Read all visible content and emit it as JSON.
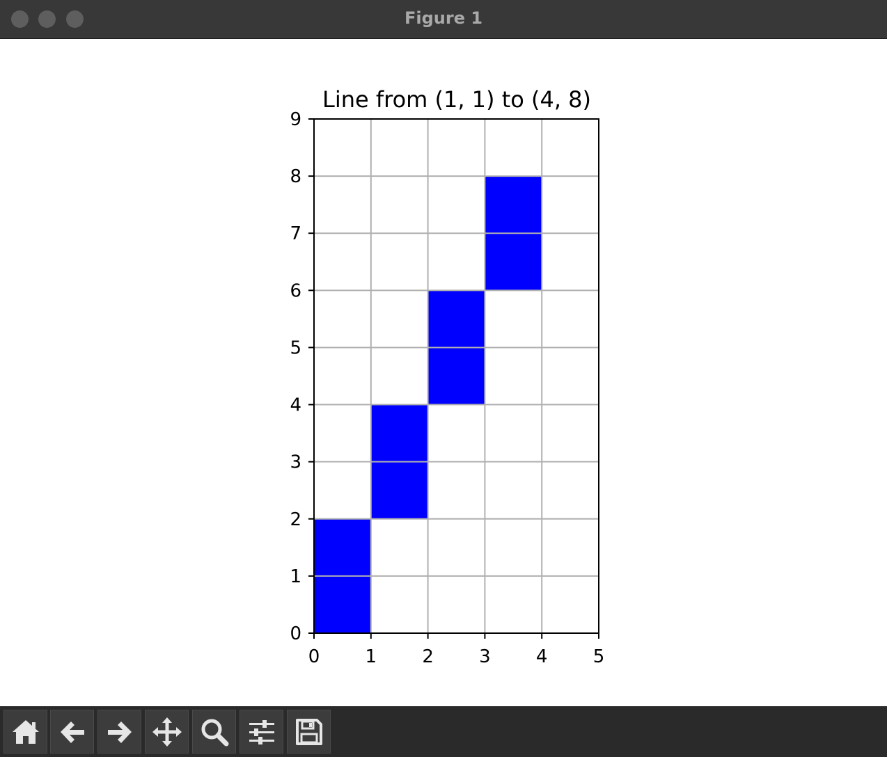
{
  "window": {
    "title": "Figure 1"
  },
  "toolbar": {
    "buttons": [
      {
        "name": "home-button",
        "icon": "home-icon"
      },
      {
        "name": "back-button",
        "icon": "arrow-left-icon"
      },
      {
        "name": "forward-button",
        "icon": "arrow-right-icon"
      },
      {
        "name": "pan-button",
        "icon": "move-icon"
      },
      {
        "name": "zoom-button",
        "icon": "search-icon"
      },
      {
        "name": "configure-subplots-button",
        "icon": "sliders-icon"
      },
      {
        "name": "save-button",
        "icon": "floppy-disk-icon"
      }
    ]
  },
  "chart_data": {
    "type": "heatmap",
    "title": "Line from (1, 1) to (4, 8)",
    "xlabel": "",
    "ylabel": "",
    "xlim": [
      0,
      5
    ],
    "ylim": [
      0,
      9
    ],
    "xticks": [
      0,
      1,
      2,
      3,
      4,
      5
    ],
    "yticks": [
      0,
      1,
      2,
      3,
      4,
      5,
      6,
      7,
      8,
      9
    ],
    "grid": true,
    "fill_color": "#0000ff",
    "filled_cells": [
      {
        "x": 0,
        "y": 0
      },
      {
        "x": 0,
        "y": 1
      },
      {
        "x": 1,
        "y": 2
      },
      {
        "x": 1,
        "y": 3
      },
      {
        "x": 2,
        "y": 4
      },
      {
        "x": 2,
        "y": 5
      },
      {
        "x": 3,
        "y": 6
      },
      {
        "x": 3,
        "y": 7
      }
    ]
  }
}
